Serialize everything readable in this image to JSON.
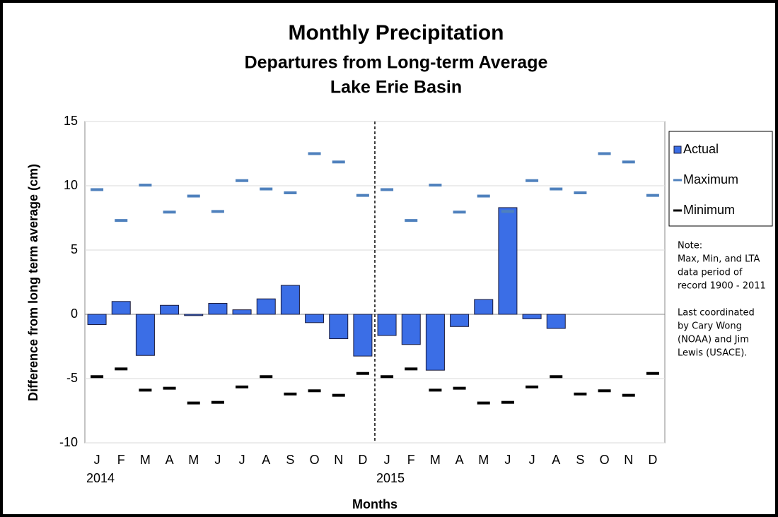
{
  "chart_data": {
    "type": "bar",
    "title": "Monthly Precipitation",
    "subtitle": [
      "Departures from Long-term Average",
      "Lake Erie Basin"
    ],
    "categories": [
      "J",
      "F",
      "M",
      "A",
      "M",
      "J",
      "J",
      "A",
      "S",
      "O",
      "N",
      "D",
      "J",
      "F",
      "M",
      "A",
      "M",
      "J",
      "J",
      "A",
      "S",
      "O",
      "N",
      "D"
    ],
    "groups": [
      "2014",
      "2015"
    ],
    "series": [
      {
        "name": "Actual",
        "color": "#3b6ee6",
        "marker": "bar",
        "values": [
          -0.8,
          1.0,
          -3.2,
          0.7,
          -0.1,
          0.85,
          0.35,
          1.2,
          2.25,
          -0.65,
          -1.9,
          -3.25,
          -1.65,
          -2.35,
          -4.35,
          -0.95,
          1.15,
          8.3,
          -0.35,
          -1.1,
          null,
          null,
          null,
          null
        ]
      },
      {
        "name": "Maximum",
        "color": "#4f81bd",
        "marker": "dash",
        "values": [
          9.7,
          7.3,
          10.05,
          7.95,
          9.2,
          8.0,
          10.4,
          9.75,
          9.45,
          12.5,
          11.85,
          9.25,
          9.7,
          7.3,
          10.05,
          7.95,
          9.2,
          8.0,
          10.4,
          9.75,
          9.45,
          12.5,
          11.85,
          9.25
        ]
      },
      {
        "name": "Minimum",
        "color": "#000000",
        "marker": "dash",
        "values": [
          -4.85,
          -4.25,
          -5.9,
          -5.75,
          -6.9,
          -6.85,
          -5.65,
          -4.85,
          -6.2,
          -5.95,
          -6.3,
          -4.6,
          -4.85,
          -4.25,
          -5.9,
          -5.75,
          -6.9,
          -6.85,
          -5.65,
          -4.85,
          -6.2,
          -5.95,
          -6.3,
          -4.6
        ]
      }
    ],
    "xlabel": "Months",
    "ylabel": "Difference from long term average (cm)",
    "ylim": [
      -10,
      15
    ],
    "yticks": [
      -10,
      -5,
      0,
      5,
      10,
      15
    ],
    "grid": true,
    "legend": "right",
    "notes": [
      [
        "Note:",
        "Max, Min, and LTA",
        "data period of",
        "record 1900 - 2011"
      ],
      [
        "Last coordinated",
        "by Cary Wong",
        "(NOAA) and Jim",
        "Lewis (USACE)."
      ]
    ]
  }
}
